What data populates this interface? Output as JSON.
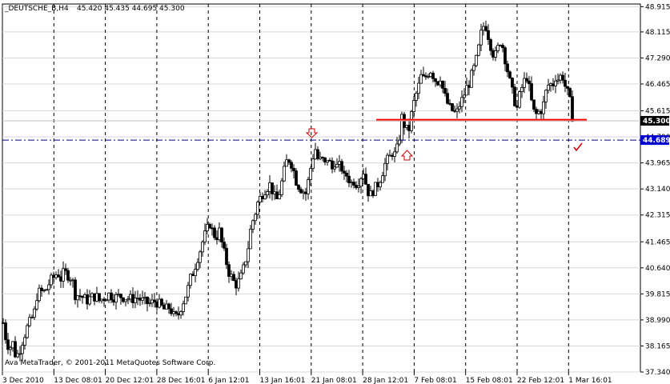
{
  "header": {
    "symbol_tf": "_DEUTSCHE_B,H4",
    "ohlc": "45.420 45.435 44.695 45.300"
  },
  "footer": {
    "copyright": "Ava MetaTrader, © 2001-2011 MetaQuotes Software Corp."
  },
  "colors": {
    "background": "#ffffff",
    "bull_candle": "#ffffff",
    "bear_candle": "#000000",
    "grid": "#000000",
    "support_line": "#ff0000",
    "bid_line": "#000080",
    "price_tag_current_bg": "#000000",
    "price_tag_bid_bg": "#0000cc",
    "annotation": "#cc0000"
  },
  "chart_data": {
    "type": "candlestick",
    "title": "_DEUTSCHE_B,H4",
    "ylim": [
      37.34,
      49.0
    ],
    "y_ticks": [
      "48.915",
      "48.115",
      "47.290",
      "46.465",
      "45.615",
      "44.790",
      "43.965",
      "43.140",
      "42.315",
      "41.465",
      "40.640",
      "39.815",
      "38.990",
      "38.165",
      "37.340"
    ],
    "x_ticks": [
      "3 Dec 2010",
      "13 Dec 08:01",
      "20 Dec 12:01",
      "28 Dec 16:01",
      "6 Jan 12:01",
      "13 Jan 16:01",
      "21 Jan 08:01",
      "28 Jan 12:01",
      "7 Feb 08:01",
      "15 Feb 08:01",
      "22 Feb 12:01",
      "1 Mar 16:01"
    ],
    "current_price": "45.300",
    "bid_line_price": "44.689",
    "support_level": 45.32,
    "grid": true,
    "close_path": [
      [
        0,
        38.9
      ],
      [
        4,
        38.3
      ],
      [
        8,
        38.1
      ],
      [
        12,
        38.25
      ],
      [
        16,
        37.8
      ],
      [
        20,
        38.0
      ],
      [
        25,
        38.4
      ],
      [
        30,
        38.75
      ],
      [
        35,
        39.0
      ],
      [
        40,
        39.3
      ],
      [
        42,
        39.75
      ],
      [
        46,
        39.9
      ],
      [
        50,
        39.85
      ],
      [
        55,
        40.0
      ],
      [
        58,
        40.2
      ],
      [
        62,
        40.3
      ],
      [
        68,
        40.5
      ],
      [
        72,
        40.3
      ],
      [
        76,
        40.5
      ],
      [
        82,
        40.4
      ],
      [
        86,
        40.3
      ],
      [
        90,
        39.8
      ],
      [
        96,
        39.75
      ],
      [
        100,
        39.7
      ],
      [
        104,
        39.6
      ],
      [
        110,
        39.7
      ],
      [
        116,
        39.75
      ],
      [
        120,
        39.6
      ],
      [
        126,
        39.7
      ],
      [
        132,
        39.8
      ],
      [
        140,
        39.7
      ],
      [
        146,
        39.75
      ],
      [
        152,
        39.7
      ],
      [
        160,
        39.65
      ],
      [
        168,
        39.7
      ],
      [
        176,
        39.55
      ],
      [
        184,
        39.5
      ],
      [
        190,
        39.6
      ],
      [
        196,
        39.45
      ],
      [
        202,
        39.3
      ],
      [
        208,
        39.4
      ],
      [
        214,
        39.05
      ],
      [
        218,
        39.1
      ],
      [
        222,
        39.4
      ],
      [
        226,
        39.65
      ],
      [
        230,
        39.9
      ],
      [
        234,
        40.3
      ],
      [
        238,
        40.55
      ],
      [
        242,
        40.9
      ],
      [
        246,
        41.2
      ],
      [
        250,
        41.55
      ],
      [
        254,
        41.8
      ],
      [
        258,
        42.05
      ],
      [
        262,
        41.75
      ],
      [
        266,
        41.6
      ],
      [
        270,
        41.8
      ],
      [
        274,
        41.3
      ],
      [
        278,
        40.9
      ],
      [
        282,
        40.5
      ],
      [
        286,
        40.3
      ],
      [
        290,
        40.1
      ],
      [
        294,
        40.2
      ],
      [
        298,
        40.4
      ],
      [
        302,
        40.8
      ],
      [
        306,
        41.3
      ],
      [
        310,
        42.0
      ],
      [
        314,
        42.3
      ],
      [
        318,
        42.7
      ],
      [
        322,
        42.9
      ],
      [
        326,
        43.1
      ],
      [
        330,
        43.2
      ],
      [
        334,
        43.3
      ],
      [
        338,
        42.9
      ],
      [
        342,
        42.8
      ],
      [
        346,
        43.1
      ],
      [
        350,
        43.6
      ],
      [
        354,
        44.0
      ],
      [
        358,
        44.1
      ],
      [
        362,
        43.8
      ],
      [
        366,
        43.4
      ],
      [
        370,
        43.2
      ],
      [
        374,
        43.1
      ],
      [
        378,
        43.0
      ],
      [
        382,
        43.5
      ],
      [
        386,
        44.1
      ],
      [
        390,
        44.4
      ],
      [
        394,
        44.0
      ],
      [
        398,
        44.1
      ],
      [
        402,
        43.9
      ],
      [
        406,
        44.2
      ],
      [
        410,
        43.7
      ],
      [
        414,
        44.0
      ],
      [
        418,
        43.8
      ],
      [
        422,
        43.9
      ],
      [
        426,
        43.5
      ],
      [
        430,
        43.6
      ],
      [
        434,
        43.3
      ],
      [
        438,
        43.4
      ],
      [
        442,
        43.3
      ],
      [
        446,
        43.5
      ],
      [
        450,
        43.7
      ],
      [
        454,
        43.2
      ],
      [
        458,
        42.9
      ],
      [
        462,
        43.1
      ],
      [
        466,
        43.2
      ],
      [
        470,
        43.4
      ],
      [
        474,
        43.7
      ],
      [
        478,
        44.0
      ],
      [
        482,
        44.1
      ],
      [
        486,
        44.3
      ],
      [
        490,
        44.2
      ],
      [
        494,
        44.6
      ],
      [
        498,
        45.4
      ],
      [
        502,
        45.1
      ],
      [
        506,
        44.9
      ],
      [
        510,
        45.5
      ],
      [
        514,
        46.0
      ],
      [
        518,
        46.3
      ],
      [
        522,
        46.7
      ],
      [
        526,
        46.6
      ],
      [
        530,
        46.8
      ],
      [
        534,
        46.9
      ],
      [
        538,
        46.7
      ],
      [
        542,
        46.5
      ],
      [
        546,
        46.7
      ],
      [
        550,
        46.2
      ],
      [
        554,
        45.9
      ],
      [
        558,
        45.7
      ],
      [
        562,
        45.6
      ],
      [
        566,
        45.5
      ],
      [
        570,
        45.8
      ],
      [
        574,
        46.0
      ],
      [
        578,
        46.3
      ],
      [
        582,
        46.5
      ],
      [
        586,
        46.8
      ],
      [
        590,
        47.1
      ],
      [
        594,
        47.6
      ],
      [
        598,
        48.2
      ],
      [
        602,
        48.4
      ],
      [
        606,
        48.0
      ],
      [
        610,
        47.6
      ],
      [
        614,
        47.3
      ],
      [
        618,
        47.6
      ],
      [
        622,
        47.9
      ],
      [
        626,
        47.4
      ],
      [
        630,
        46.9
      ],
      [
        634,
        46.4
      ],
      [
        638,
        46.0
      ],
      [
        642,
        45.7
      ],
      [
        646,
        46.2
      ],
      [
        650,
        46.5
      ],
      [
        654,
        46.7
      ],
      [
        658,
        46.2
      ],
      [
        662,
        45.6
      ],
      [
        666,
        45.5
      ],
      [
        670,
        45.6
      ],
      [
        674,
        45.7
      ],
      [
        678,
        46.2
      ],
      [
        682,
        46.5
      ],
      [
        686,
        46.4
      ],
      [
        690,
        46.7
      ],
      [
        694,
        46.6
      ],
      [
        698,
        46.8
      ],
      [
        702,
        46.4
      ],
      [
        706,
        46.1
      ],
      [
        708,
        45.9
      ],
      [
        712,
        45.3
      ]
    ]
  }
}
